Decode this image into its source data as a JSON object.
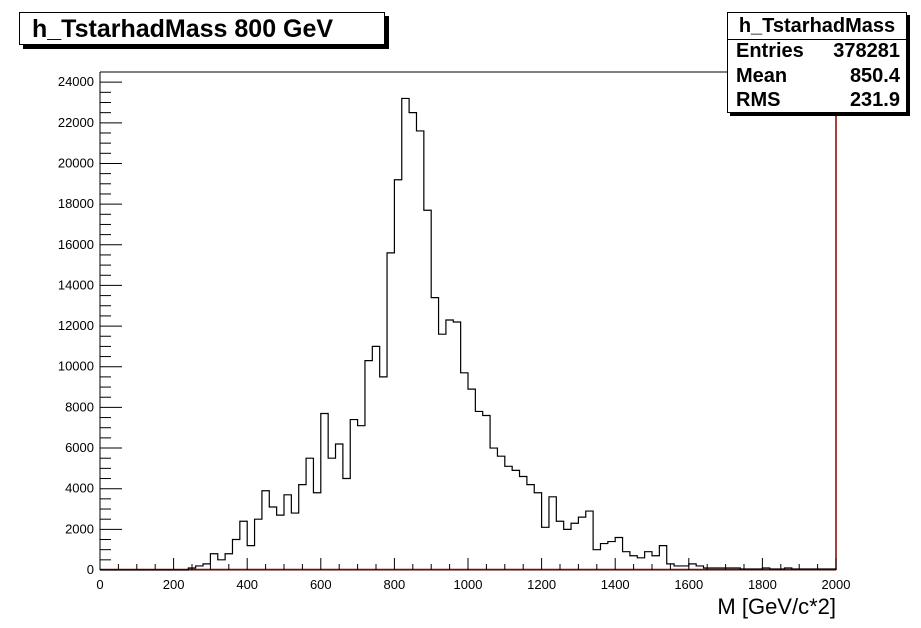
{
  "chart_data": {
    "type": "histogram",
    "title": "h_TstarhadMass 800 GeV",
    "xlabel": "M [GeV/c*2]",
    "ylabel": "",
    "xlim": [
      0,
      2000
    ],
    "ylim": [
      0,
      24500
    ],
    "bin_width": 20,
    "x_ticks": [
      0,
      200,
      400,
      600,
      800,
      1000,
      1200,
      1400,
      1600,
      1800,
      2000
    ],
    "y_ticks": [
      0,
      2000,
      4000,
      6000,
      8000,
      10000,
      12000,
      14000,
      16000,
      18000,
      20000,
      22000,
      24000
    ],
    "grid": false,
    "values": [
      0,
      0,
      0,
      0,
      0,
      0,
      0,
      0,
      0,
      0,
      0,
      0,
      100,
      200,
      300,
      800,
      500,
      800,
      1500,
      2400,
      1200,
      2500,
      3900,
      3100,
      2700,
      3700,
      2800,
      4200,
      5500,
      3800,
      7700,
      5500,
      6200,
      4500,
      7400,
      7100,
      10300,
      11000,
      9500,
      15600,
      19200,
      23200,
      22500,
      21600,
      17700,
      13400,
      11600,
      12300,
      12200,
      9700,
      8900,
      7800,
      7600,
      6000,
      5600,
      5100,
      4900,
      4600,
      4200,
      3800,
      2100,
      3600,
      2400,
      2000,
      2300,
      2600,
      2900,
      1000,
      1300,
      1400,
      1600,
      900,
      700,
      600,
      900,
      700,
      1200,
      300,
      200,
      200,
      300,
      200,
      100,
      100,
      100,
      100,
      100,
      50,
      50,
      50,
      100,
      50,
      50,
      100,
      50,
      50,
      50,
      50,
      50,
      50
    ],
    "stats": {
      "name": "h_TstarhadMass",
      "entries_label": "Entries",
      "entries": "378281",
      "mean_label": "Mean",
      "mean": "850.4",
      "rms_label": "RMS",
      "rms": "231.9"
    },
    "colors": {
      "hist_line": "#000000",
      "frame": "#000000",
      "frame_right": "#8b0000",
      "baseline": "#8b0000"
    }
  }
}
